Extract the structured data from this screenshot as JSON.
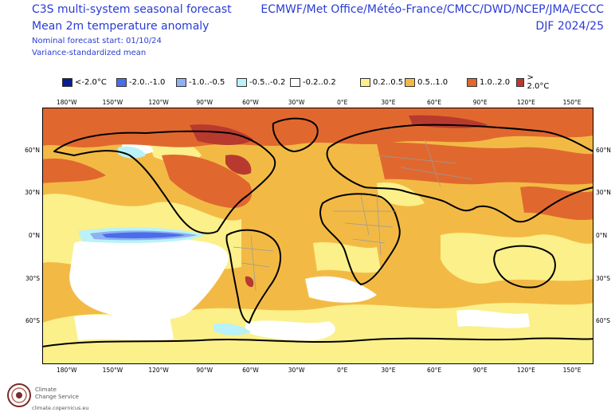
{
  "header": {
    "title_line1": "C3S multi-system seasonal forecast",
    "title_line2": "Mean 2m temperature anomaly",
    "start_label": "Nominal forecast start: 01/10/24",
    "method_label": "Variance-standardized mean",
    "sources": "ECMWF/Met Office/Météo-France/CMCC/DWD/NCEP/JMA/ECCC",
    "season": "DJF 2024/25"
  },
  "legend": [
    {
      "label": "<-2.0°C",
      "color": "#0a1f8f"
    },
    {
      "label": "-2.0..-1.0",
      "color": "#4a6ee8"
    },
    {
      "label": "-1.0..-0.5",
      "color": "#8fb0f2"
    },
    {
      "label": "-0.5..-0.2",
      "color": "#b9f2f8"
    },
    {
      "label": "-0.2..0.2",
      "color": "#ffffff"
    },
    {
      "label": "0.2..0.5",
      "color": "#fbf08a"
    },
    {
      "label": "0.5..1.0",
      "color": "#f2ba45"
    },
    {
      "label": "1.0..2.0",
      "color": "#e0682f"
    },
    {
      "label": "> 2.0°C",
      "color": "#b83a2f"
    }
  ],
  "map": {
    "lon_ticks": [
      "180°W",
      "150°W",
      "120°W",
      "90°W",
      "60°W",
      "30°W",
      "0°E",
      "30°E",
      "60°E",
      "90°E",
      "120°E",
      "150°E"
    ],
    "lat_ticks": [
      "60°N",
      "30°N",
      "0°N",
      "30°S",
      "60°S"
    ]
  },
  "logo": {
    "name_line1": "Climate",
    "name_line2": "Change Service",
    "url": "climate.copernicus.eu"
  }
}
